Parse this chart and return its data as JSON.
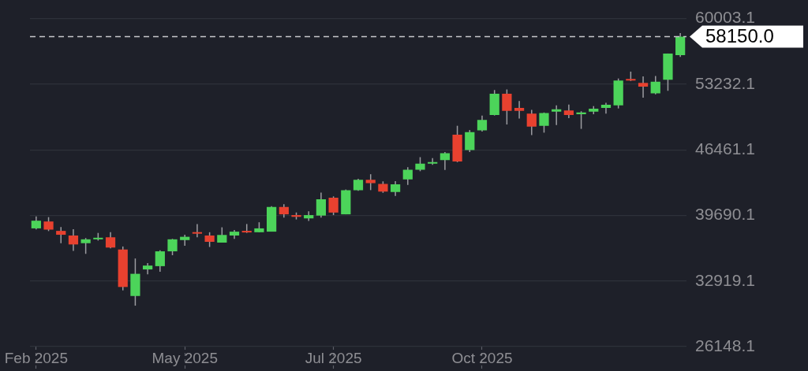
{
  "chart_data": {
    "type": "candlestick",
    "categories": [
      "Feb 2025",
      null,
      null,
      null,
      null,
      null,
      null,
      null,
      null,
      null,
      null,
      null,
      "May 2025",
      null,
      null,
      null,
      null,
      null,
      null,
      null,
      null,
      null,
      null,
      null,
      "Jul 2025",
      null,
      null,
      null,
      null,
      null,
      null,
      null,
      null,
      null,
      null,
      null,
      "Oct 2025",
      null,
      null,
      null,
      null,
      null,
      null,
      null,
      null,
      null,
      null,
      null,
      null,
      null,
      null,
      null,
      null
    ],
    "ohlc": [
      [
        38350,
        39590,
        38250,
        39140
      ],
      [
        39060,
        39510,
        38070,
        38220
      ],
      [
        38090,
        38480,
        36820,
        37690
      ],
      [
        37610,
        38270,
        36030,
        36690
      ],
      [
        36820,
        37350,
        35720,
        37220
      ],
      [
        37220,
        37880,
        37090,
        37270
      ],
      [
        37430,
        37950,
        36290,
        36370
      ],
      [
        36170,
        36480,
        31950,
        32300
      ],
      [
        31370,
        35240,
        30370,
        33660
      ],
      [
        34110,
        34770,
        33610,
        34510
      ],
      [
        34450,
        36090,
        33880,
        35980
      ],
      [
        35980,
        37270,
        35580,
        37220
      ],
      [
        37140,
        37690,
        36560,
        37480
      ],
      [
        37870,
        38800,
        37430,
        37800
      ],
      [
        37610,
        37950,
        36430,
        36960
      ],
      [
        36880,
        38460,
        36880,
        37670
      ],
      [
        37610,
        38190,
        37270,
        38010
      ],
      [
        38010,
        38800,
        37880,
        37930
      ],
      [
        37950,
        38980,
        37950,
        38350
      ],
      [
        38010,
        40640,
        38010,
        40560
      ],
      [
        40560,
        40850,
        39460,
        39800
      ],
      [
        39720,
        39990,
        39270,
        39540
      ],
      [
        39380,
        40120,
        39120,
        39720
      ],
      [
        39670,
        42040,
        39460,
        41350
      ],
      [
        41510,
        41650,
        39720,
        39980
      ],
      [
        39800,
        42360,
        39800,
        42280
      ],
      [
        42280,
        43460,
        42220,
        43360
      ],
      [
        43360,
        43940,
        42300,
        43010
      ],
      [
        42930,
        43200,
        42020,
        42140
      ],
      [
        42100,
        43230,
        41700,
        42890
      ],
      [
        43410,
        44670,
        42830,
        44410
      ],
      [
        44410,
        45700,
        44250,
        45040
      ],
      [
        45040,
        45600,
        44910,
        45180
      ],
      [
        45400,
        46230,
        44390,
        46100
      ],
      [
        48020,
        48940,
        45180,
        45260
      ],
      [
        46440,
        48500,
        46230,
        48280
      ],
      [
        48470,
        50000,
        48340,
        49550
      ],
      [
        50050,
        52630,
        50000,
        52240
      ],
      [
        52240,
        52690,
        49070,
        50470
      ],
      [
        50790,
        51500,
        49680,
        50470
      ],
      [
        50200,
        50580,
        47970,
        48860
      ],
      [
        48940,
        50310,
        48230,
        50260
      ],
      [
        50390,
        51050,
        49020,
        50650
      ],
      [
        50520,
        51130,
        49730,
        50050
      ],
      [
        50130,
        50440,
        48620,
        50310
      ],
      [
        50390,
        50970,
        50130,
        50710
      ],
      [
        50790,
        51310,
        50200,
        51110
      ],
      [
        51050,
        53820,
        50730,
        53600
      ],
      [
        53760,
        54530,
        53560,
        53600
      ],
      [
        53370,
        54030,
        51840,
        52970
      ],
      [
        52290,
        54080,
        52180,
        53480
      ],
      [
        53680,
        56400,
        52550,
        56400
      ],
      [
        56240,
        58500,
        56050,
        58150
      ]
    ],
    "colors": [
      "#4cd45a",
      "#e8412f",
      "#e8412f",
      "#e8412f",
      "#4cd45a",
      "#4cd45a",
      "#e8412f",
      "#e8412f",
      "#4cd45a",
      "#4cd45a",
      "#4cd45a",
      "#4cd45a",
      "#4cd45a",
      "#e8412f",
      "#e8412f",
      "#4cd45a",
      "#4cd45a",
      "#e8412f",
      "#4cd45a",
      "#4cd45a",
      "#e8412f",
      "#e8412f",
      "#4cd45a",
      "#4cd45a",
      "#e8412f",
      "#4cd45a",
      "#4cd45a",
      "#e8412f",
      "#e8412f",
      "#4cd45a",
      "#4cd45a",
      "#4cd45a",
      "#4cd45a",
      "#4cd45a",
      "#e8412f",
      "#4cd45a",
      "#4cd45a",
      "#4cd45a",
      "#e8412f",
      "#e8412f",
      "#e8412f",
      "#4cd45a",
      "#4cd45a",
      "#e8412f",
      "#4cd45a",
      "#4cd45a",
      "#4cd45a",
      "#4cd45a",
      "#e8412f",
      "#e8412f",
      "#4cd45a",
      "#4cd45a",
      "#4cd45a"
    ],
    "ylim": [
      26148.1,
      60003.1
    ],
    "yticks": [
      26148.1,
      32919.1,
      39690.1,
      46461.1,
      53232.1,
      60003.1
    ],
    "grid": "y",
    "ref_lines": [
      {
        "axis": "y",
        "value": 58150.0,
        "label": "58150.0",
        "line_style": "dashed",
        "color": "#c8c8cc"
      }
    ]
  }
}
